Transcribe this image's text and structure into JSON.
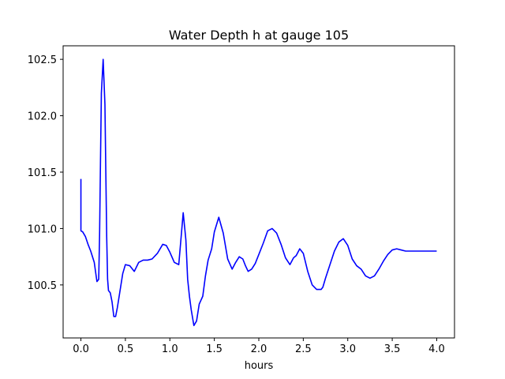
{
  "chart_data": {
    "type": "line",
    "title": "Water Depth h at gauge 105",
    "xlabel": "hours",
    "ylabel": "",
    "xlim": [
      -0.2,
      4.2
    ],
    "ylim": [
      100.03,
      102.62
    ],
    "x_ticks": [
      0.0,
      0.5,
      1.0,
      1.5,
      2.0,
      2.5,
      3.0,
      3.5,
      4.0
    ],
    "x_tick_labels": [
      "0.0",
      "0.5",
      "1.0",
      "1.5",
      "2.0",
      "2.5",
      "3.0",
      "3.5",
      "4.0"
    ],
    "y_ticks": [
      100.5,
      101.0,
      101.5,
      102.0,
      102.5
    ],
    "y_tick_labels": [
      "100.5",
      "101.0",
      "101.5",
      "102.0",
      "102.5"
    ],
    "grid": false,
    "series": [
      {
        "color": "#0000ff",
        "x": [
          0.0,
          0.0,
          0.02,
          0.05,
          0.08,
          0.11,
          0.15,
          0.18,
          0.2,
          0.21,
          0.22,
          0.23,
          0.25,
          0.27,
          0.28,
          0.29,
          0.3,
          0.31,
          0.33,
          0.35,
          0.37,
          0.39,
          0.41,
          0.44,
          0.47,
          0.5,
          0.55,
          0.6,
          0.65,
          0.7,
          0.75,
          0.8,
          0.86,
          0.92,
          0.96,
          1.0,
          1.05,
          1.1,
          1.15,
          1.18,
          1.2,
          1.22,
          1.24,
          1.27,
          1.3,
          1.33,
          1.37,
          1.4,
          1.43,
          1.47,
          1.5,
          1.55,
          1.6,
          1.65,
          1.7,
          1.74,
          1.78,
          1.82,
          1.85,
          1.88,
          1.92,
          1.96,
          2.0,
          2.05,
          2.1,
          2.15,
          2.2,
          2.25,
          2.3,
          2.35,
          2.39,
          2.42,
          2.46,
          2.5,
          2.55,
          2.6,
          2.65,
          2.7,
          2.72,
          2.75,
          2.8,
          2.85,
          2.9,
          2.95,
          3.0,
          3.05,
          3.1,
          3.15,
          3.2,
          3.25,
          3.3,
          3.35,
          3.4,
          3.45,
          3.5,
          3.55,
          3.6,
          3.65,
          3.7,
          3.75,
          3.8,
          3.85,
          3.9,
          3.95,
          4.0
        ],
        "y": [
          101.44,
          100.98,
          100.97,
          100.93,
          100.86,
          100.8,
          100.7,
          100.53,
          100.55,
          100.95,
          101.6,
          102.2,
          102.5,
          102.1,
          101.5,
          100.92,
          100.55,
          100.45,
          100.43,
          100.35,
          100.22,
          100.22,
          100.3,
          100.45,
          100.6,
          100.68,
          100.67,
          100.62,
          100.7,
          100.72,
          100.72,
          100.73,
          100.78,
          100.86,
          100.85,
          100.79,
          100.7,
          100.68,
          101.14,
          100.9,
          100.55,
          100.4,
          100.28,
          100.14,
          100.18,
          100.33,
          100.4,
          100.58,
          100.72,
          100.82,
          100.97,
          101.1,
          100.96,
          100.73,
          100.64,
          100.7,
          100.75,
          100.73,
          100.67,
          100.62,
          100.64,
          100.69,
          100.77,
          100.87,
          100.98,
          101.0,
          100.96,
          100.86,
          100.74,
          100.68,
          100.74,
          100.76,
          100.82,
          100.78,
          100.62,
          100.5,
          100.46,
          100.46,
          100.48,
          100.56,
          100.68,
          100.8,
          100.88,
          100.91,
          100.85,
          100.73,
          100.67,
          100.64,
          100.58,
          100.56,
          100.58,
          100.64,
          100.71,
          100.77,
          100.81,
          100.82,
          100.81,
          100.8,
          100.8,
          100.8,
          100.8,
          100.8,
          100.8,
          100.8,
          100.8
        ]
      }
    ]
  }
}
